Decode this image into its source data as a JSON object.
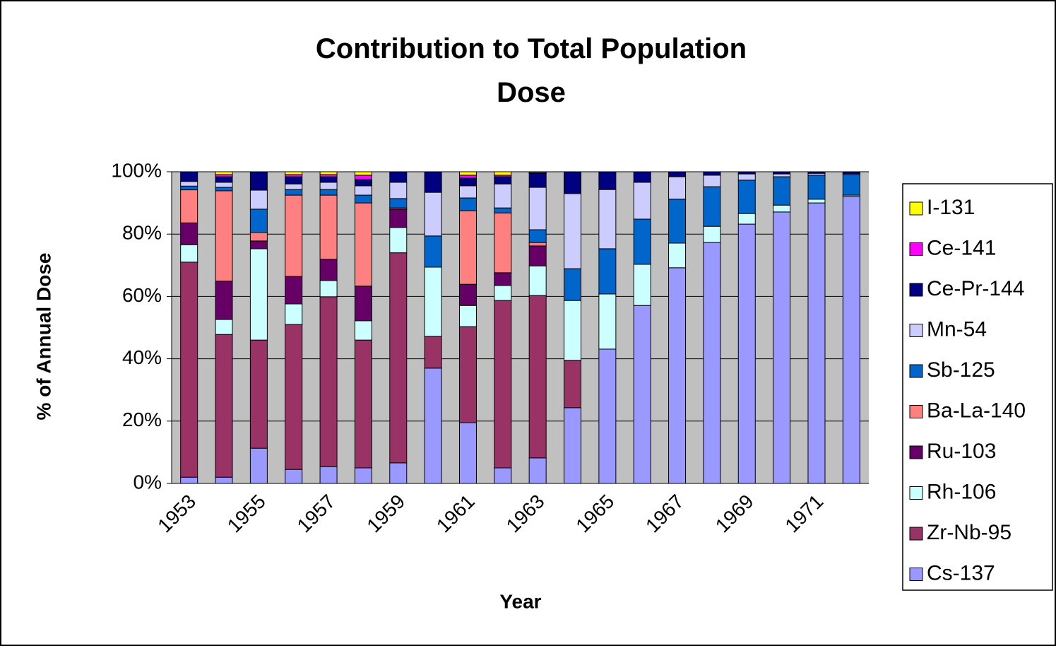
{
  "chart_data": {
    "type": "stacked_bar_percent",
    "title": "Contribution to Total Population Dose",
    "x_label": "Year",
    "y_label": "% of Annual Dose",
    "categories": [
      "1953",
      null,
      "1955",
      null,
      "1957",
      null,
      "1959",
      null,
      "1961",
      null,
      "1963",
      null,
      "1965",
      null,
      "1967",
      null,
      "1969",
      null,
      "1971",
      null
    ],
    "ylim": [
      0,
      100
    ],
    "yticks": [
      {
        "value": 0,
        "label": "0%"
      },
      {
        "value": 20,
        "label": "20%"
      },
      {
        "value": 40,
        "label": "40%"
      },
      {
        "value": 60,
        "label": "60%"
      },
      {
        "value": 80,
        "label": "80%"
      },
      {
        "value": 100,
        "label": "100%"
      }
    ],
    "grid": true,
    "legend": "right",
    "series": [
      {
        "name": "Cs-137",
        "color": "#9999ff",
        "values": [
          2,
          2,
          11.3,
          4.5,
          5.4,
          5,
          6.6,
          37,
          19.5,
          5,
          8.2,
          24.3,
          43.1,
          57.1,
          69.2,
          77.3,
          83.2,
          87.1,
          90,
          92.1
        ]
      },
      {
        "name": "Zr-Nb-95",
        "color": "#993366",
        "values": [
          69,
          45.8,
          34.7,
          46.5,
          54.5,
          41,
          67.4,
          10.2,
          30.8,
          53.7,
          52.1,
          15.2,
          0,
          0,
          0,
          0,
          0,
          0,
          0,
          0
        ]
      },
      {
        "name": "Rh-106",
        "color": "#ccffff",
        "values": [
          5.6,
          4.8,
          29.3,
          6.6,
          5.2,
          6.2,
          8.1,
          22.2,
          6.8,
          4.8,
          9.5,
          19.2,
          17.7,
          13.2,
          7.9,
          5.2,
          3.4,
          2.2,
          1.2,
          0.4
        ]
      },
      {
        "name": "Ru-103",
        "color": "#660066",
        "values": [
          7,
          12.3,
          2.5,
          8.8,
          6.8,
          11.1,
          5.9,
          0,
          6.8,
          4.1,
          6.4,
          0,
          0,
          0,
          0,
          0,
          0,
          0,
          0,
          0
        ]
      },
      {
        "name": "Ba-La-140",
        "color": "#ff8080",
        "values": [
          10.6,
          29,
          2.7,
          26.1,
          20.6,
          26.7,
          0.4,
          0,
          23.6,
          19.2,
          1.1,
          0,
          0,
          0,
          0,
          0,
          0,
          0,
          0,
          0
        ]
      },
      {
        "name": "Sb-125",
        "color": "#0066cc",
        "values": [
          1.2,
          1.1,
          7.5,
          1.8,
          1.8,
          2.5,
          3,
          10,
          4.1,
          1.6,
          4.1,
          10.2,
          14.5,
          14.5,
          14.1,
          12.7,
          10.7,
          9.1,
          7.7,
          6.6
        ]
      },
      {
        "name": "Mn-54",
        "color": "#ccccff",
        "values": [
          1.5,
          1.6,
          6.1,
          1.8,
          2.3,
          3,
          5.2,
          14,
          3.9,
          7.7,
          13.6,
          24.1,
          19,
          11.8,
          7.2,
          3.7,
          2,
          0.9,
          0.6,
          0.3
        ]
      },
      {
        "name": "Ce-Pr-144",
        "color": "#000080",
        "values": [
          3.1,
          1.8,
          5.9,
          2.3,
          1.8,
          2,
          3.4,
          6.6,
          2.5,
          2.3,
          4.5,
          7,
          5.7,
          3.4,
          1.6,
          1.1,
          0.7,
          0.7,
          0.5,
          0.6
        ]
      },
      {
        "name": "Ce-141",
        "color": "#ff00ff",
        "values": [
          0,
          0.7,
          0,
          0.7,
          0.7,
          1.4,
          0,
          0,
          0.9,
          0.5,
          0.2,
          0,
          0,
          0,
          0,
          0,
          0,
          0,
          0,
          0
        ]
      },
      {
        "name": "I-131",
        "color": "#ffff00",
        "values": [
          0,
          0.9,
          0,
          0.9,
          0.9,
          1.1,
          0,
          0,
          1.1,
          1.1,
          0.3,
          0,
          0,
          0,
          0,
          0,
          0,
          0,
          0,
          0
        ]
      }
    ]
  }
}
